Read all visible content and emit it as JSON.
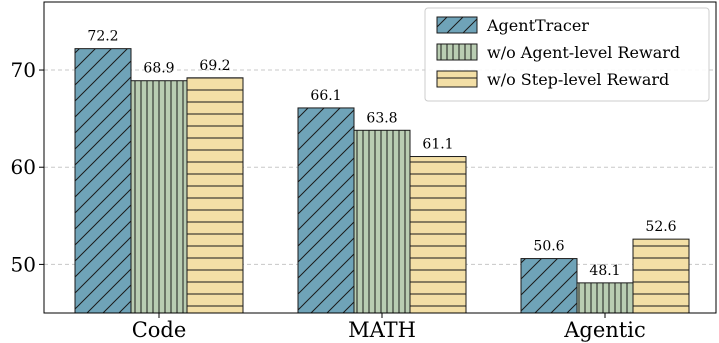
{
  "chart_data": {
    "type": "bar",
    "categories": [
      "Code",
      "MATH",
      "Agentic"
    ],
    "series": [
      {
        "name": "AgentTracer",
        "values": [
          72.2,
          66.1,
          50.6
        ],
        "color": "#6FA3B8",
        "hatch": "diagonal"
      },
      {
        "name": "w/o Agent-level Reward",
        "values": [
          68.9,
          63.8,
          48.1
        ],
        "color": "#B9CDB2",
        "hatch": "vertical"
      },
      {
        "name": "w/o Step-level Reward",
        "values": [
          69.2,
          61.1,
          52.6
        ],
        "color": "#F3DFA6",
        "hatch": "horizontal"
      }
    ],
    "value_labels": [
      "72.2",
      "68.9",
      "69.2",
      "66.1",
      "63.8",
      "61.1",
      "50.6",
      "48.1",
      "52.6"
    ],
    "yticks": [
      50,
      60,
      70
    ],
    "ytick_labels": [
      "50",
      "60",
      "70"
    ],
    "ylim": [
      45,
      77
    ],
    "grid": "horizontal dashed",
    "legend_position": "top-right"
  }
}
